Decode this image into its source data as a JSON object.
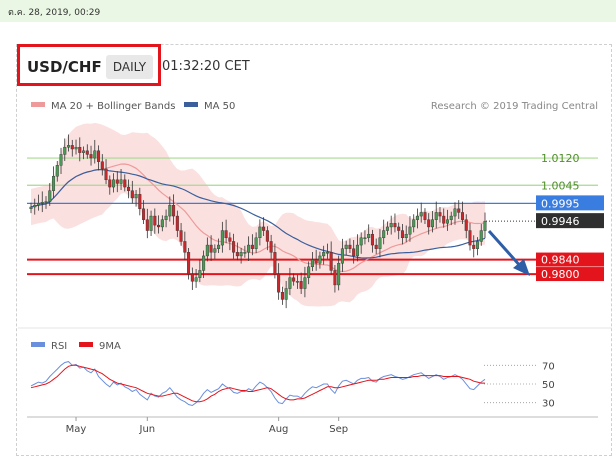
{
  "date_stamp": "ต.ค. 28, 2019, 00:29",
  "header": {
    "pair": "USD/CHF",
    "timeframe": "DAILY",
    "time": "01:32:20 CET"
  },
  "legend": {
    "bb": "MA 20 + Bollinger Bands",
    "ma50": "MA 50",
    "credit": "Research © 2019 Trading Central",
    "rsi": "RSI",
    "ma9": "9MA"
  },
  "colors": {
    "bull": "#4a9a55",
    "bear": "#c8272b",
    "band": "#fadada",
    "ma20": "#ee9a9a",
    "ma50": "#3a5f9c",
    "support": "#e3141b",
    "pivot": "#3a7de0",
    "resistance": "#a8d98f",
    "rsi": "#6a8fdc",
    "ma9": "#e3141b"
  },
  "chart_data": [
    {
      "type": "candlestick",
      "x_labels": [
        "May",
        "Jun",
        "Aug",
        "Sep"
      ],
      "y_range": [
        0.9665,
        1.0225
      ],
      "levels": [
        {
          "label": "1.0120",
          "value": 1.012,
          "kind": "resistance"
        },
        {
          "label": "1.0045",
          "value": 1.0045,
          "kind": "resistance"
        },
        {
          "label": "0.9995",
          "value": 0.9995,
          "kind": "pivot"
        },
        {
          "label": "0.9946",
          "value": 0.9946,
          "kind": "last"
        },
        {
          "label": "0.9840",
          "value": 0.984,
          "kind": "support"
        },
        {
          "label": "0.9800",
          "value": 0.98,
          "kind": "support"
        }
      ],
      "closes": [
        0.9985,
        0.999,
        0.9995,
        0.9998,
        1.0,
        1.003,
        1.007,
        1.01,
        1.013,
        1.015,
        1.0155,
        1.0145,
        1.015,
        1.0135,
        1.014,
        1.013,
        1.012,
        1.014,
        1.011,
        1.009,
        1.006,
        1.004,
        1.006,
        1.005,
        1.006,
        1.004,
        1.003,
        1.001,
        1.002,
        0.998,
        0.995,
        0.992,
        0.996,
        0.9935,
        0.993,
        0.995,
        0.996,
        0.999,
        0.996,
        0.992,
        0.989,
        0.986,
        0.98,
        0.978,
        0.979,
        0.981,
        0.985,
        0.988,
        0.986,
        0.987,
        0.988,
        0.992,
        0.99,
        0.989,
        0.986,
        0.985,
        0.986,
        0.986,
        0.988,
        0.987,
        0.99,
        0.993,
        0.992,
        0.989,
        0.986,
        0.98,
        0.975,
        0.973,
        0.976,
        0.979,
        0.978,
        0.978,
        0.976,
        0.979,
        0.982,
        0.984,
        0.983,
        0.985,
        0.986,
        0.986,
        0.981,
        0.977,
        0.983,
        0.987,
        0.988,
        0.987,
        0.985,
        0.988,
        0.99,
        0.99,
        0.991,
        0.988,
        0.987,
        0.99,
        0.992,
        0.993,
        0.994,
        0.993,
        0.992,
        0.99,
        0.991,
        0.993,
        0.995,
        0.996,
        0.997,
        0.995,
        0.993,
        0.995,
        0.997,
        0.996,
        0.994,
        0.995,
        0.996,
        0.998,
        0.997,
        0.995,
        0.992,
        0.988,
        0.987,
        0.989,
        0.992,
        0.9946
      ]
    },
    {
      "type": "line",
      "name": "RSI panel",
      "y_ticks": [
        70,
        50,
        30
      ],
      "y_range": [
        20,
        80
      ],
      "series": [
        {
          "name": "RSI",
          "values": [
            48,
            50,
            52,
            51,
            53,
            58,
            62,
            66,
            70,
            73,
            74,
            70,
            71,
            67,
            68,
            64,
            62,
            66,
            58,
            54,
            50,
            47,
            52,
            49,
            51,
            47,
            45,
            42,
            44,
            39,
            36,
            33,
            40,
            37,
            36,
            40,
            42,
            46,
            41,
            36,
            33,
            31,
            28,
            27,
            30,
            34,
            40,
            44,
            41,
            43,
            45,
            50,
            47,
            45,
            41,
            40,
            42,
            42,
            45,
            43,
            48,
            52,
            50,
            46,
            42,
            35,
            30,
            29,
            34,
            38,
            37,
            37,
            35,
            40,
            44,
            47,
            46,
            48,
            50,
            50,
            44,
            40,
            48,
            53,
            54,
            52,
            50,
            54,
            56,
            56,
            57,
            53,
            52,
            56,
            58,
            59,
            60,
            58,
            57,
            55,
            56,
            58,
            60,
            61,
            62,
            59,
            56,
            58,
            60,
            58,
            55,
            57,
            58,
            60,
            58,
            55,
            50,
            45,
            44,
            48,
            52,
            55
          ]
        },
        {
          "name": "9MA",
          "values": [
            46,
            47,
            48,
            49,
            50,
            52,
            55,
            58,
            62,
            66,
            69,
            70,
            70,
            69,
            68,
            67,
            66,
            65,
            63,
            61,
            58,
            55,
            53,
            51,
            50,
            49,
            48,
            47,
            46,
            44,
            42,
            40,
            39,
            38,
            37,
            37,
            38,
            39,
            40,
            40,
            38,
            36,
            34,
            32,
            31,
            31,
            32,
            34,
            37,
            39,
            42,
            44,
            45,
            46,
            45,
            44,
            43,
            43,
            42,
            42,
            43,
            44,
            45,
            46,
            45,
            42,
            39,
            36,
            34,
            33,
            33,
            34,
            34,
            35,
            37,
            39,
            41,
            43,
            45,
            47,
            47,
            46,
            46,
            47,
            48,
            49,
            50,
            51,
            52,
            53,
            54,
            54,
            54,
            55,
            55,
            56,
            57,
            57,
            57,
            57,
            57,
            57,
            58,
            58,
            59,
            59,
            59,
            59,
            59,
            59,
            58,
            58,
            58,
            58,
            58,
            57,
            56,
            55,
            53,
            52,
            51,
            51
          ]
        }
      ]
    }
  ]
}
